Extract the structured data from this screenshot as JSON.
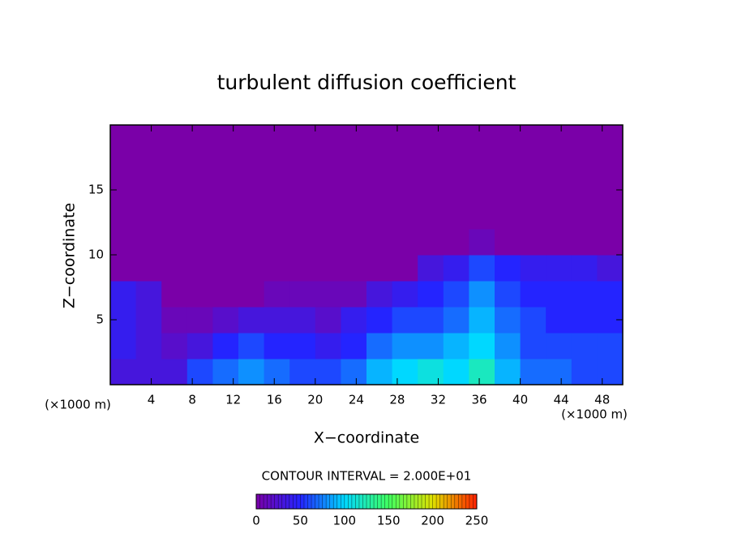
{
  "chart_data": {
    "type": "heatmap",
    "title": "turbulent diffusion coefficient",
    "x_label": "X−coordinate",
    "y_label": "Z−coordinate",
    "x_unit": "(×1000 m)",
    "y_unit": "(×1000 m)",
    "contour_note": "CONTOUR INTERVAL = 2.000E+01",
    "xlim": [
      0,
      50
    ],
    "ylim": [
      0,
      20
    ],
    "xticks": [
      4,
      8,
      12,
      16,
      20,
      24,
      28,
      32,
      36,
      40,
      44,
      48
    ],
    "yticks": [
      5,
      10,
      15
    ],
    "x": [
      1.25,
      3.75,
      6.25,
      8.75,
      11.25,
      13.75,
      16.25,
      18.75,
      21.25,
      23.75,
      26.25,
      28.75,
      31.25,
      33.75,
      36.25,
      38.75,
      41.25,
      43.75,
      46.25,
      48.75
    ],
    "y": [
      1,
      3,
      5,
      7,
      9,
      11,
      13,
      15,
      17,
      19
    ],
    "z": [
      [
        30,
        30,
        30,
        60,
        70,
        80,
        70,
        60,
        60,
        70,
        90,
        100,
        110,
        100,
        120,
        90,
        70,
        70,
        60,
        60
      ],
      [
        40,
        30,
        20,
        30,
        50,
        60,
        50,
        50,
        40,
        50,
        70,
        80,
        80,
        90,
        100,
        80,
        60,
        60,
        60,
        60
      ],
      [
        40,
        30,
        10,
        10,
        20,
        30,
        30,
        30,
        20,
        40,
        50,
        60,
        60,
        70,
        90,
        70,
        60,
        50,
        50,
        50
      ],
      [
        40,
        30,
        0,
        0,
        0,
        0,
        10,
        10,
        10,
        10,
        30,
        40,
        50,
        60,
        80,
        60,
        50,
        50,
        50,
        50
      ],
      [
        0,
        0,
        0,
        0,
        0,
        0,
        0,
        0,
        0,
        0,
        0,
        0,
        30,
        40,
        60,
        50,
        40,
        40,
        40,
        30
      ],
      [
        0,
        0,
        0,
        0,
        0,
        0,
        0,
        0,
        0,
        0,
        0,
        0,
        0,
        0,
        10,
        0,
        0,
        0,
        0,
        0
      ],
      [
        0,
        0,
        0,
        0,
        0,
        0,
        0,
        0,
        0,
        0,
        0,
        0,
        0,
        0,
        0,
        0,
        0,
        0,
        0,
        0
      ],
      [
        0,
        0,
        0,
        0,
        0,
        0,
        0,
        0,
        0,
        0,
        0,
        0,
        0,
        0,
        0,
        0,
        0,
        0,
        0,
        0
      ],
      [
        0,
        0,
        0,
        0,
        0,
        0,
        0,
        0,
        0,
        0,
        0,
        0,
        0,
        0,
        0,
        0,
        0,
        0,
        0,
        0
      ],
      [
        0,
        0,
        0,
        0,
        0,
        0,
        0,
        0,
        0,
        0,
        0,
        0,
        0,
        0,
        0,
        0,
        0,
        0,
        0,
        0
      ]
    ],
    "clim": [
      0,
      250
    ],
    "cticks": [
      0,
      50,
      100,
      150,
      200,
      250
    ],
    "colorscale": [
      "#7a00a8",
      "#2424ff",
      "#00d8ff",
      "#40ff60",
      "#e0e000",
      "#ff2000"
    ]
  }
}
